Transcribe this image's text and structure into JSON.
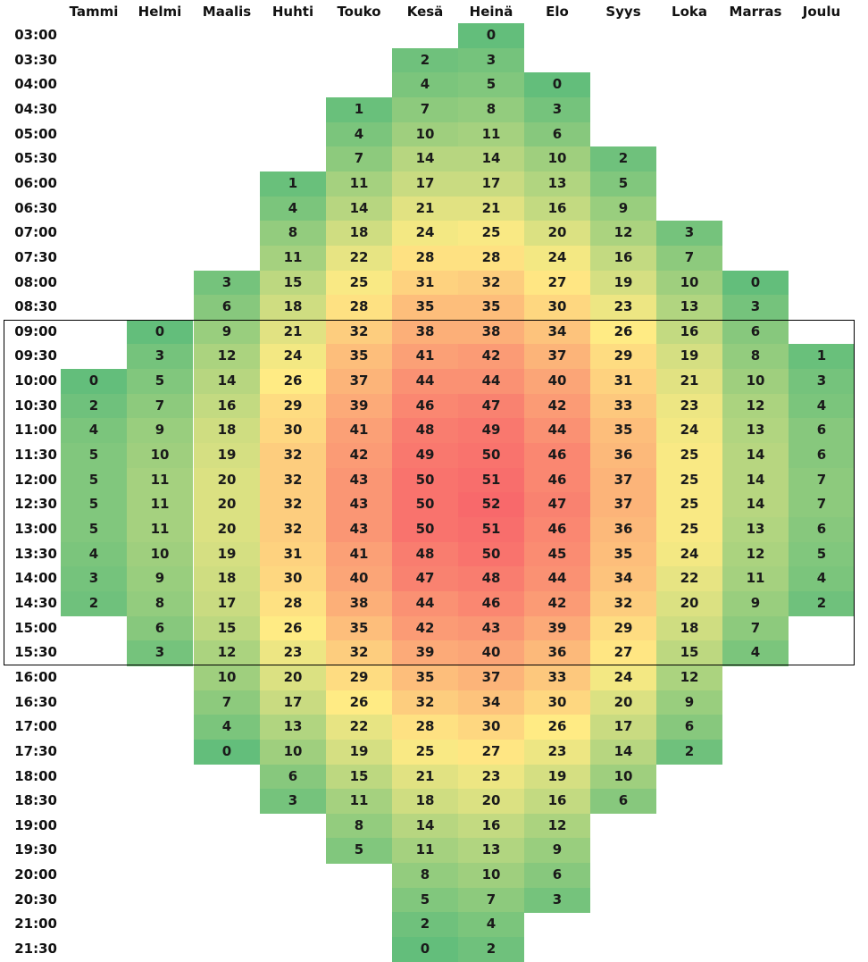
{
  "chart_data": {
    "type": "heatmap",
    "columns": [
      "Tammi",
      "Helmi",
      "Maalis",
      "Huhti",
      "Touko",
      "Kesä",
      "Heinä",
      "Elo",
      "Syys",
      "Loka",
      "Marras",
      "Joulu"
    ],
    "rows": [
      "03:00",
      "03:30",
      "04:00",
      "04:30",
      "05:00",
      "05:30",
      "06:00",
      "06:30",
      "07:00",
      "07:30",
      "08:00",
      "08:30",
      "09:00",
      "09:30",
      "10:00",
      "10:30",
      "11:00",
      "11:30",
      "12:00",
      "12:30",
      "13:00",
      "13:30",
      "14:00",
      "14:30",
      "15:00",
      "15:30",
      "16:00",
      "16:30",
      "17:00",
      "17:30",
      "18:00",
      "18:30",
      "19:00",
      "19:30",
      "20:00",
      "20:30",
      "21:00",
      "21:30"
    ],
    "values": [
      [
        null,
        null,
        null,
        null,
        null,
        null,
        0,
        null,
        null,
        null,
        null,
        null
      ],
      [
        null,
        null,
        null,
        null,
        null,
        2,
        3,
        null,
        null,
        null,
        null,
        null
      ],
      [
        null,
        null,
        null,
        null,
        null,
        4,
        5,
        0,
        null,
        null,
        null,
        null
      ],
      [
        null,
        null,
        null,
        null,
        1,
        7,
        8,
        3,
        null,
        null,
        null,
        null
      ],
      [
        null,
        null,
        null,
        null,
        4,
        10,
        11,
        6,
        null,
        null,
        null,
        null
      ],
      [
        null,
        null,
        null,
        null,
        7,
        14,
        14,
        10,
        2,
        null,
        null,
        null
      ],
      [
        null,
        null,
        null,
        1,
        11,
        17,
        17,
        13,
        5,
        null,
        null,
        null
      ],
      [
        null,
        null,
        null,
        4,
        14,
        21,
        21,
        16,
        9,
        null,
        null,
        null
      ],
      [
        null,
        null,
        null,
        8,
        18,
        24,
        25,
        20,
        12,
        3,
        null,
        null
      ],
      [
        null,
        null,
        null,
        11,
        22,
        28,
        28,
        24,
        16,
        7,
        null,
        null
      ],
      [
        null,
        null,
        3,
        15,
        25,
        31,
        32,
        27,
        19,
        10,
        0,
        null
      ],
      [
        null,
        null,
        6,
        18,
        28,
        35,
        35,
        30,
        23,
        13,
        3,
        null
      ],
      [
        null,
        0,
        9,
        21,
        32,
        38,
        38,
        34,
        26,
        16,
        6,
        null
      ],
      [
        null,
        3,
        12,
        24,
        35,
        41,
        42,
        37,
        29,
        19,
        8,
        1
      ],
      [
        0,
        5,
        14,
        26,
        37,
        44,
        44,
        40,
        31,
        21,
        10,
        3
      ],
      [
        2,
        7,
        16,
        29,
        39,
        46,
        47,
        42,
        33,
        23,
        12,
        4
      ],
      [
        4,
        9,
        18,
        30,
        41,
        48,
        49,
        44,
        35,
        24,
        13,
        6
      ],
      [
        5,
        10,
        19,
        32,
        42,
        49,
        50,
        46,
        36,
        25,
        14,
        6
      ],
      [
        5,
        11,
        20,
        32,
        43,
        50,
        51,
        46,
        37,
        25,
        14,
        7
      ],
      [
        5,
        11,
        20,
        32,
        43,
        50,
        52,
        47,
        37,
        25,
        14,
        7
      ],
      [
        5,
        11,
        20,
        32,
        43,
        50,
        51,
        46,
        36,
        25,
        13,
        6
      ],
      [
        4,
        10,
        19,
        31,
        41,
        48,
        50,
        45,
        35,
        24,
        12,
        5
      ],
      [
        3,
        9,
        18,
        30,
        40,
        47,
        48,
        44,
        34,
        22,
        11,
        4
      ],
      [
        2,
        8,
        17,
        28,
        38,
        44,
        46,
        42,
        32,
        20,
        9,
        2
      ],
      [
        null,
        6,
        15,
        26,
        35,
        42,
        43,
        39,
        29,
        18,
        7,
        null
      ],
      [
        null,
        3,
        12,
        23,
        32,
        39,
        40,
        36,
        27,
        15,
        4,
        null
      ],
      [
        null,
        null,
        10,
        20,
        29,
        35,
        37,
        33,
        24,
        12,
        null,
        null
      ],
      [
        null,
        null,
        7,
        17,
        26,
        32,
        34,
        30,
        20,
        9,
        null,
        null
      ],
      [
        null,
        null,
        4,
        13,
        22,
        28,
        30,
        26,
        17,
        6,
        null,
        null
      ],
      [
        null,
        null,
        0,
        10,
        19,
        25,
        27,
        23,
        14,
        2,
        null,
        null
      ],
      [
        null,
        null,
        null,
        6,
        15,
        21,
        23,
        19,
        10,
        null,
        null,
        null
      ],
      [
        null,
        null,
        null,
        3,
        11,
        18,
        20,
        16,
        6,
        null,
        null,
        null
      ],
      [
        null,
        null,
        null,
        null,
        8,
        14,
        16,
        12,
        null,
        null,
        null,
        null
      ],
      [
        null,
        null,
        null,
        null,
        5,
        11,
        13,
        9,
        null,
        null,
        null,
        null
      ],
      [
        null,
        null,
        null,
        null,
        null,
        8,
        10,
        6,
        null,
        null,
        null,
        null
      ],
      [
        null,
        null,
        null,
        null,
        null,
        5,
        7,
        3,
        null,
        null,
        null,
        null
      ],
      [
        null,
        null,
        null,
        null,
        null,
        2,
        4,
        null,
        null,
        null,
        null,
        null
      ],
      [
        null,
        null,
        null,
        null,
        null,
        0,
        2,
        null,
        null,
        null,
        null,
        null
      ]
    ],
    "highlight_rows": [
      "09:00",
      "15:30"
    ],
    "color_scale": {
      "low": "#63be7b",
      "mid": "#ffeb84",
      "high": "#f8696b",
      "min": 0,
      "max": 52
    }
  }
}
